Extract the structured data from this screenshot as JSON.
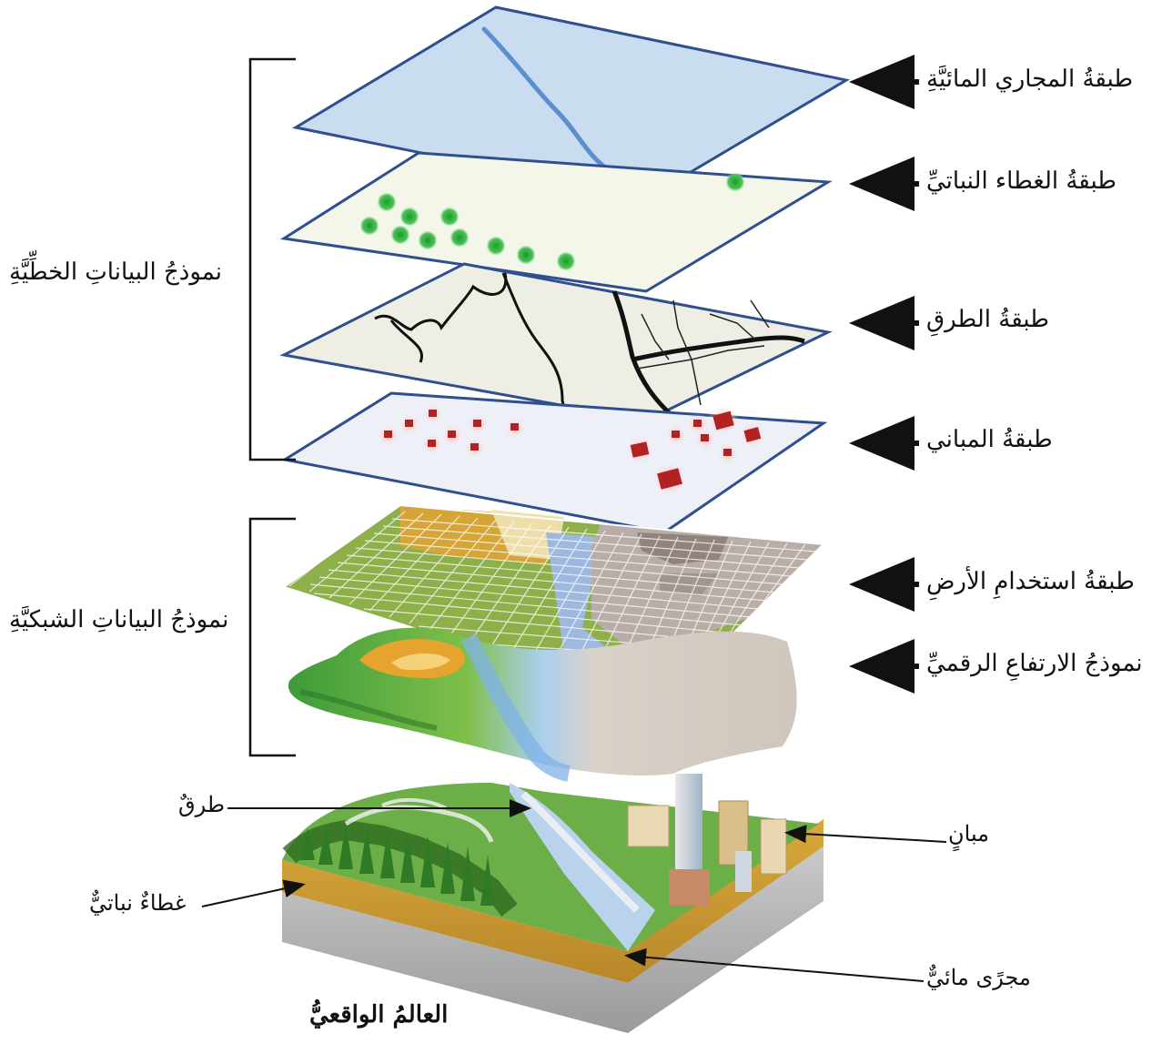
{
  "layers": [
    {
      "id": "water",
      "label": "طبقةُ المجاري المائيَّةِ"
    },
    {
      "id": "vegetation",
      "label": "طبقةُ الغطاء النباتيِّ"
    },
    {
      "id": "roads",
      "label": "طبقةُ الطرقِ"
    },
    {
      "id": "buildings",
      "label": "طبقةُ المباني"
    },
    {
      "id": "landuse",
      "label": "طبقةُ استخدامِ الأرضِ"
    },
    {
      "id": "dem",
      "label": "نموذجُ الارتفاعِ الرقميِّ"
    }
  ],
  "groups": {
    "vector": "نموذجُ البياناتِ الخطِّيَّةِ",
    "raster": "نموذجُ البياناتِ الشبكيَّةِ"
  },
  "world": {
    "title": "العالمُ الواقعيُّ",
    "road": "طرقٌ",
    "vegetation": "غطاءٌ نباتيٌّ",
    "buildings": "مبانٍ",
    "stream": "مجرًى مائيٌّ"
  },
  "colors": {
    "layer_border": "#2f4f8f",
    "water_fill": "#c9dcf0",
    "stream": "#5b8fd0",
    "vegetation_dot": "#3cb043",
    "building": "#b22222",
    "landuse_green": "#8db04a",
    "landuse_orange": "#d9a437",
    "landuse_grey": "#b9aea7",
    "landuse_blue": "#9fb8e0"
  }
}
